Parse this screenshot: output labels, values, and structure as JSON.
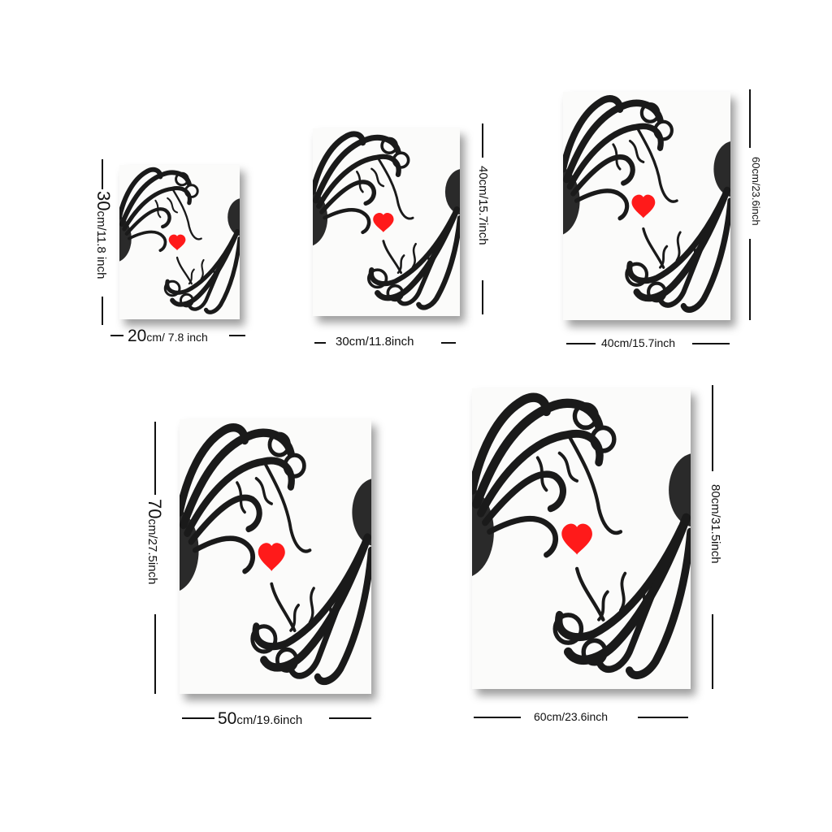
{
  "colors": {
    "heart": "#ff1a1a",
    "ink": "#1a1a1a",
    "paper": "#fbfbfa",
    "shadow": "#9a9a9a"
  },
  "artwork": {
    "motif": [
      "octopus-illustration",
      "heart-icon"
    ]
  },
  "sizes": [
    {
      "width_num": "20",
      "width_rest": "cm/ 7.8 inch",
      "height_num": "30",
      "height_rest": "cm/11.8 inch"
    },
    {
      "width_label": "30cm/11.8inch",
      "height_label": "40cm/15.7inch"
    },
    {
      "width_label": "40cm/15.7inch",
      "height_label": "60cm/23.6inch"
    },
    {
      "width_num": "50",
      "width_rest": "cm/19.6inch",
      "height_num": "70",
      "height_rest": "cm/27.5inch"
    },
    {
      "width_label": "60cm/23.6inch",
      "height_label": "80cm/31.5inch"
    }
  ]
}
